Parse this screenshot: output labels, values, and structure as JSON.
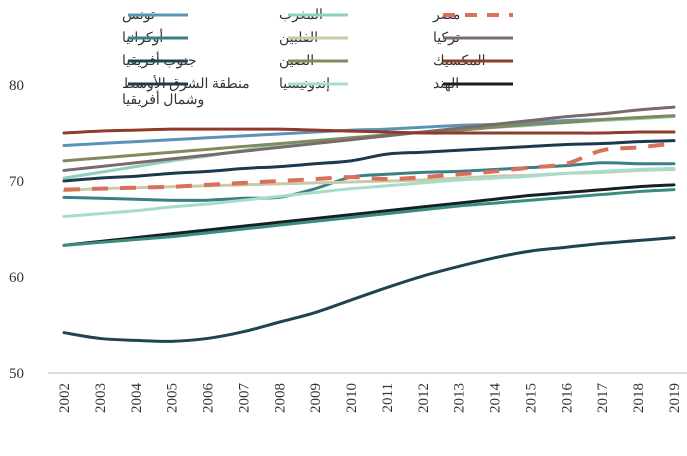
{
  "chart_data": {
    "type": "line",
    "title": "",
    "xlabel": "",
    "ylabel": "",
    "ylim": [
      50,
      80
    ],
    "yticks": [
      "50",
      "60",
      "70",
      "80"
    ],
    "x": [
      "2002",
      "2003",
      "2004",
      "2005",
      "2006",
      "2007",
      "2008",
      "2009",
      "2010",
      "2011",
      "2012",
      "2013",
      "2014",
      "2015",
      "2016",
      "2017",
      "2018",
      "2019"
    ],
    "legend_placement": "top",
    "series": [
      {
        "name": "تونس",
        "color": "#5b93b8",
        "dash": false,
        "values": [
          73.7,
          73.9,
          74.1,
          74.3,
          74.5,
          74.7,
          74.9,
          75.1,
          75.3,
          75.4,
          75.6,
          75.8,
          75.9,
          76.1,
          76.3,
          76.4,
          76.6,
          76.8
        ]
      },
      {
        "name": "أوكرانيا",
        "color": "#3b7f86",
        "dash": false,
        "values": [
          68.3,
          68.2,
          68.1,
          68.0,
          68.0,
          68.2,
          68.3,
          69.2,
          70.4,
          70.7,
          70.9,
          71.0,
          71.2,
          71.4,
          71.6,
          71.9,
          71.8,
          71.8
        ]
      },
      {
        "name": "جنوب أفريقيا",
        "color": "#1f4350",
        "dash": false,
        "values": [
          54.2,
          53.6,
          53.4,
          53.3,
          53.6,
          54.3,
          55.3,
          56.3,
          57.6,
          58.9,
          60.1,
          61.1,
          62.0,
          62.7,
          63.1,
          63.5,
          63.8,
          64.1
        ]
      },
      {
        "name": "منطقة الشرق الأوسط",
        "name2": "وشمال أفريقيا",
        "color": "#1b3a4f",
        "dash": false,
        "values": [
          70.0,
          70.3,
          70.5,
          70.8,
          71.0,
          71.3,
          71.5,
          71.8,
          72.1,
          72.8,
          73.0,
          73.2,
          73.4,
          73.6,
          73.8,
          73.9,
          74.1,
          74.2
        ]
      },
      {
        "name": "المغرب",
        "color": "#8ed0bd",
        "dash": false,
        "values": [
          70.3,
          70.9,
          71.5,
          72.1,
          72.6,
          73.2,
          73.7,
          74.1,
          74.5,
          74.8,
          75.1,
          75.3,
          75.6,
          75.8,
          76.1,
          76.3,
          76.5,
          76.7
        ]
      },
      {
        "name": "الفلبين",
        "color": "#c9c9a6",
        "dash": false,
        "values": [
          69.0,
          69.2,
          69.3,
          69.4,
          69.5,
          69.6,
          69.7,
          69.8,
          69.9,
          70.0,
          70.1,
          70.3,
          70.5,
          70.6,
          70.8,
          70.9,
          71.1,
          71.2
        ]
      },
      {
        "name": "الصين",
        "color": "#808a5d",
        "dash": false,
        "values": [
          72.1,
          72.4,
          72.7,
          73.0,
          73.3,
          73.6,
          73.9,
          74.2,
          74.5,
          74.8,
          75.1,
          75.3,
          75.6,
          75.9,
          76.1,
          76.4,
          76.6,
          76.8
        ]
      },
      {
        "name": "إندونيسيا",
        "color": "#a7dccb",
        "dash": false,
        "values": [
          66.3,
          66.6,
          66.9,
          67.3,
          67.6,
          68.0,
          68.4,
          68.8,
          69.2,
          69.5,
          69.8,
          70.1,
          70.3,
          70.5,
          70.8,
          71.0,
          71.2,
          71.3
        ]
      },
      {
        "name": "مصر",
        "color": "#d9705a",
        "dash": true,
        "values": [
          69.1,
          69.2,
          69.3,
          69.4,
          69.6,
          69.8,
          70.0,
          70.2,
          70.4,
          70.2,
          70.4,
          70.7,
          71.0,
          71.4,
          71.8,
          73.2,
          73.5,
          73.9
        ]
      },
      {
        "name": "تركيا",
        "color": "#7b6a6a",
        "dash": false,
        "values": [
          71.1,
          71.5,
          71.9,
          72.3,
          72.7,
          73.1,
          73.5,
          73.9,
          74.3,
          74.7,
          75.1,
          75.5,
          75.9,
          76.3,
          76.7,
          77.0,
          77.4,
          77.7
        ]
      },
      {
        "name": "المكسيك",
        "color": "#8f3a2a",
        "dash": false,
        "values": [
          75.0,
          75.2,
          75.3,
          75.4,
          75.4,
          75.4,
          75.4,
          75.3,
          75.2,
          75.1,
          75.0,
          75.0,
          75.0,
          75.0,
          75.0,
          75.0,
          75.1,
          75.1
        ]
      },
      {
        "name": "الهند",
        "color": "#151f24",
        "dash": false,
        "values": [
          63.3,
          63.7,
          64.1,
          64.5,
          64.9,
          65.3,
          65.7,
          66.1,
          66.5,
          66.9,
          67.3,
          67.7,
          68.1,
          68.5,
          68.8,
          69.1,
          69.4,
          69.6
        ]
      },
      {
        "name": "",
        "color": "#3a8c7c",
        "dash": false,
        "values": [
          63.3,
          63.6,
          63.9,
          64.2,
          64.6,
          65.0,
          65.4,
          65.8,
          66.2,
          66.6,
          67.0,
          67.4,
          67.7,
          68.0,
          68.3,
          68.6,
          68.9,
          69.1
        ]
      }
    ]
  }
}
